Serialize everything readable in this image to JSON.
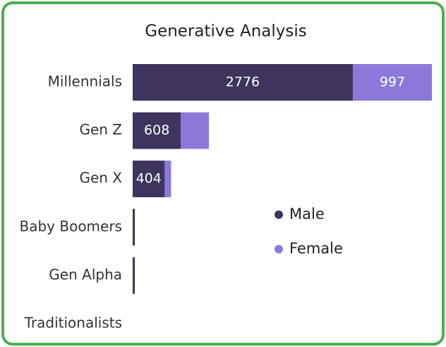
{
  "chart_data": {
    "type": "stacked-bar-horizontal",
    "title": "Generative Analysis",
    "categories": [
      "Millennials",
      "Gen Z",
      "Gen X",
      "Baby Boomers",
      "Gen Alpha",
      "Traditionalists"
    ],
    "series": [
      {
        "name": "Male",
        "color": "#3e345e",
        "values": [
          2776,
          608,
          404,
          25,
          22,
          0
        ]
      },
      {
        "name": "Female",
        "color": "#8c79d9",
        "values": [
          997,
          354,
          80,
          0,
          0,
          0
        ]
      }
    ]
  }
}
